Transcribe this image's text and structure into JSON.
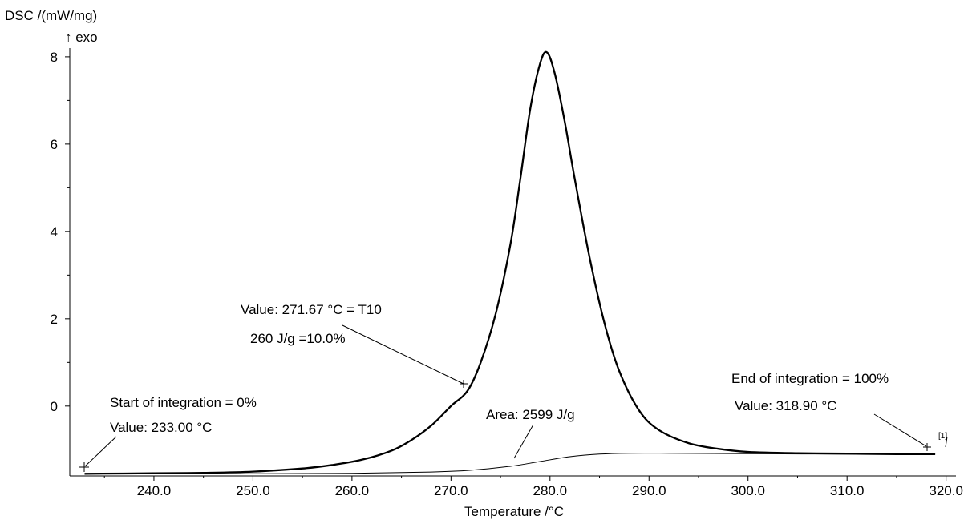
{
  "chart_data": {
    "type": "line",
    "ylabel": "DSC /(mW/mg)",
    "ylabel_note": "↑ exo",
    "xlabel": "Temperature /°C",
    "xlim": [
      231.5,
      321.0
    ],
    "ylim": [
      -1.6,
      8.2
    ],
    "x_ticks": [
      240.0,
      250.0,
      260.0,
      270.0,
      280.0,
      290.0,
      300.0,
      310.0,
      320.0
    ],
    "x_tick_labels": [
      "240.0",
      "250.0",
      "260.0",
      "270.0",
      "280.0",
      "290.0",
      "300.0",
      "310.0",
      "320.0"
    ],
    "y_ticks": [
      0,
      2,
      4,
      6,
      8
    ],
    "y_tick_labels": [
      "0",
      "2",
      "4",
      "6",
      "8"
    ],
    "grid": false,
    "series": [
      {
        "role": "dsc-curve",
        "x": [
          233.0,
          240.0,
          245.0,
          250.0,
          255.0,
          258.0,
          261.0,
          264.0,
          266.0,
          268.0,
          270.0,
          271.67,
          273.0,
          274.5,
          276.0,
          277.0,
          278.0,
          279.0,
          279.7,
          280.5,
          281.5,
          282.5,
          284.0,
          285.5,
          287.0,
          289.0,
          291.0,
          294.0,
          297.0,
          300.0,
          305.0,
          310.0,
          315.0,
          318.9
        ],
        "y": [
          -1.55,
          -1.54,
          -1.53,
          -1.5,
          -1.43,
          -1.35,
          -1.23,
          -1.02,
          -0.78,
          -0.45,
          0.0,
          0.35,
          1.0,
          2.1,
          3.7,
          5.2,
          6.8,
          7.85,
          8.1,
          7.6,
          6.5,
          5.2,
          3.4,
          1.9,
          0.8,
          -0.1,
          -0.55,
          -0.85,
          -0.98,
          -1.05,
          -1.08,
          -1.09,
          -1.1,
          -1.1
        ]
      },
      {
        "role": "integration-baseline",
        "x": [
          233.0,
          250.0,
          260.0,
          268.0,
          272.0,
          276.0,
          279.0,
          282.0,
          285.0,
          288.0,
          292.0,
          300.0,
          310.0,
          318.9
        ],
        "y": [
          -1.55,
          -1.55,
          -1.54,
          -1.51,
          -1.47,
          -1.38,
          -1.27,
          -1.16,
          -1.1,
          -1.08,
          -1.08,
          -1.09,
          -1.1,
          -1.1
        ]
      }
    ],
    "annotations": [
      {
        "line1": "Start of integration = 0%",
        "line2": "Value: 233.00 °C"
      },
      {
        "line1": "Value: 271.67 °C = T10",
        "line2": "260 J/g =10.0%"
      },
      {
        "line1": "Area: 2599 J/g"
      },
      {
        "line1": "End of integration = 100%",
        "line2": "Value: 318.90 °C"
      },
      {
        "line1": "[1]"
      }
    ]
  }
}
